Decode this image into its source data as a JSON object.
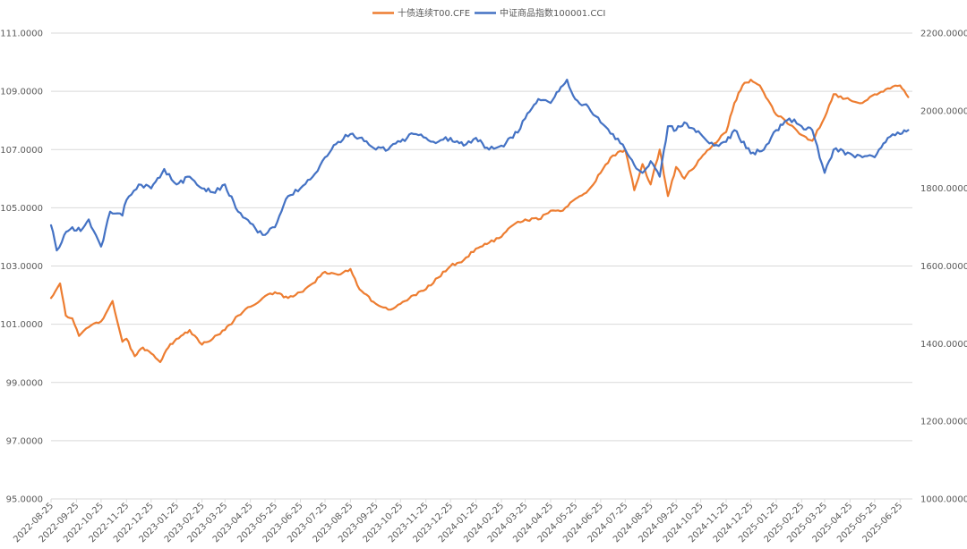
{
  "chart_data": {
    "type": "line",
    "legend_position": "top-center",
    "grid": true,
    "x_ticks": [
      "2022-08-25",
      "2022-09-25",
      "2022-10-25",
      "2022-11-25",
      "2022-12-25",
      "2023-01-25",
      "2023-02-25",
      "2023-03-25",
      "2023-04-25",
      "2023-05-25",
      "2023-06-25",
      "2023-07-25",
      "2023-08-25",
      "2023-09-25",
      "2023-10-25",
      "2023-11-25",
      "2023-12-25",
      "2024-01-25",
      "2024-02-25",
      "2024-03-25",
      "2024-04-25",
      "2024-05-25",
      "2024-06-25",
      "2024-07-25",
      "2024-08-25",
      "2024-09-25",
      "2024-10-25",
      "2024-11-25",
      "2024-12-25",
      "2025-01-25",
      "2025-02-25",
      "2025-03-25",
      "2025-04-25",
      "2025-05-25",
      "2025-06-25"
    ],
    "y_left": {
      "ylim": [
        95,
        111
      ],
      "ticks": [
        "95.0000",
        "97.0000",
        "99.0000",
        "101.0000",
        "103.0000",
        "105.0000",
        "107.0000",
        "109.0000",
        "111.0000"
      ]
    },
    "y_right": {
      "ylim": [
        1000,
        2200
      ],
      "ticks": [
        "1000.0000",
        "1200.0000",
        "1400.0000",
        "1600.0000",
        "1800.0000",
        "2000.0000",
        "2200.0000"
      ]
    },
    "series": [
      {
        "name": "十债连续T00.CFE",
        "color": "#ED7D31",
        "axis": "left",
        "x": [
          "2022-08-25",
          "2022-09-05",
          "2022-09-12",
          "2022-09-20",
          "2022-09-28",
          "2022-10-10",
          "2022-10-25",
          "2022-11-08",
          "2022-11-20",
          "2022-11-25",
          "2022-12-05",
          "2022-12-15",
          "2022-12-25",
          "2023-01-05",
          "2023-01-15",
          "2023-01-25",
          "2023-02-10",
          "2023-02-25",
          "2023-03-10",
          "2023-03-25",
          "2023-04-10",
          "2023-04-25",
          "2023-05-10",
          "2023-05-25",
          "2023-06-10",
          "2023-06-25",
          "2023-07-10",
          "2023-07-25",
          "2023-08-10",
          "2023-08-25",
          "2023-09-05",
          "2023-09-25",
          "2023-10-10",
          "2023-10-25",
          "2023-11-10",
          "2023-11-25",
          "2023-12-10",
          "2023-12-25",
          "2024-01-10",
          "2024-01-25",
          "2024-02-10",
          "2024-02-25",
          "2024-03-10",
          "2024-03-25",
          "2024-04-10",
          "2024-04-25",
          "2024-05-10",
          "2024-05-25",
          "2024-06-10",
          "2024-06-25",
          "2024-07-10",
          "2024-07-25",
          "2024-08-05",
          "2024-08-15",
          "2024-08-25",
          "2024-09-05",
          "2024-09-15",
          "2024-09-25",
          "2024-10-05",
          "2024-10-25",
          "2024-11-10",
          "2024-11-25",
          "2024-12-05",
          "2024-12-15",
          "2024-12-25",
          "2025-01-05",
          "2025-01-15",
          "2025-01-25",
          "2025-02-05",
          "2025-02-25",
          "2025-03-10",
          "2025-03-25",
          "2025-04-05",
          "2025-04-25",
          "2025-05-10",
          "2025-05-25",
          "2025-06-10",
          "2025-06-25",
          "2025-07-05"
        ],
        "values": [
          101.9,
          102.4,
          101.3,
          101.2,
          100.6,
          100.9,
          101.1,
          101.8,
          100.4,
          100.5,
          99.9,
          100.2,
          100.0,
          99.7,
          100.2,
          100.5,
          100.8,
          100.3,
          100.5,
          100.8,
          101.3,
          101.6,
          101.9,
          102.1,
          101.9,
          102.1,
          102.4,
          102.8,
          102.7,
          102.9,
          102.2,
          101.7,
          101.5,
          101.7,
          102.0,
          102.2,
          102.6,
          103.0,
          103.2,
          103.6,
          103.8,
          104.0,
          104.4,
          104.6,
          104.6,
          104.9,
          104.9,
          105.3,
          105.6,
          106.2,
          106.8,
          107.0,
          105.6,
          106.5,
          105.8,
          107.0,
          105.4,
          106.4,
          106.0,
          106.7,
          107.2,
          107.6,
          108.6,
          109.2,
          109.4,
          109.2,
          108.7,
          108.2,
          108.0,
          107.5,
          107.3,
          108.1,
          108.9,
          108.7,
          108.6,
          108.9,
          109.1,
          109.2,
          108.8
        ]
      },
      {
        "name": "中证商品指数100001.CCI",
        "color": "#4472C4",
        "axis": "right",
        "x": [
          "2022-08-25",
          "2022-09-01",
          "2022-09-10",
          "2022-09-20",
          "2022-09-30",
          "2022-10-10",
          "2022-10-25",
          "2022-11-05",
          "2022-11-20",
          "2022-11-25",
          "2022-12-10",
          "2022-12-25",
          "2023-01-10",
          "2023-01-25",
          "2023-02-10",
          "2023-02-25",
          "2023-03-10",
          "2023-03-25",
          "2023-04-10",
          "2023-04-25",
          "2023-05-10",
          "2023-05-25",
          "2023-06-10",
          "2023-06-25",
          "2023-07-10",
          "2023-07-25",
          "2023-08-10",
          "2023-08-25",
          "2023-09-05",
          "2023-09-25",
          "2023-10-10",
          "2023-10-25",
          "2023-11-10",
          "2023-11-25",
          "2023-12-10",
          "2023-12-25",
          "2024-01-10",
          "2024-01-25",
          "2024-02-10",
          "2024-02-25",
          "2024-03-10",
          "2024-03-25",
          "2024-04-10",
          "2024-04-25",
          "2024-05-05",
          "2024-05-15",
          "2024-05-25",
          "2024-06-10",
          "2024-06-25",
          "2024-07-10",
          "2024-07-25",
          "2024-08-05",
          "2024-08-15",
          "2024-08-25",
          "2024-09-05",
          "2024-09-15",
          "2024-09-25",
          "2024-10-05",
          "2024-10-25",
          "2024-11-10",
          "2024-11-25",
          "2024-12-05",
          "2024-12-25",
          "2025-01-10",
          "2025-01-25",
          "2025-02-10",
          "2025-02-25",
          "2025-03-10",
          "2025-03-25",
          "2025-04-05",
          "2025-04-25",
          "2025-05-10",
          "2025-05-25",
          "2025-06-10",
          "2025-06-25",
          "2025-07-05"
        ],
        "values": [
          1705,
          1640,
          1680,
          1700,
          1690,
          1720,
          1650,
          1740,
          1730,
          1770,
          1810,
          1800,
          1850,
          1810,
          1830,
          1800,
          1790,
          1810,
          1740,
          1710,
          1680,
          1700,
          1780,
          1800,
          1830,
          1880,
          1920,
          1940,
          1930,
          1900,
          1900,
          1920,
          1940,
          1930,
          1920,
          1930,
          1910,
          1930,
          1900,
          1910,
          1930,
          1980,
          2030,
          2020,
          2050,
          2080,
          2030,
          2010,
          1970,
          1940,
          1900,
          1860,
          1840,
          1870,
          1830,
          1960,
          1950,
          1970,
          1940,
          1910,
          1920,
          1950,
          1890,
          1900,
          1950,
          1980,
          1960,
          1950,
          1840,
          1900,
          1890,
          1880,
          1880,
          1930,
          1940,
          1950
        ]
      }
    ]
  }
}
